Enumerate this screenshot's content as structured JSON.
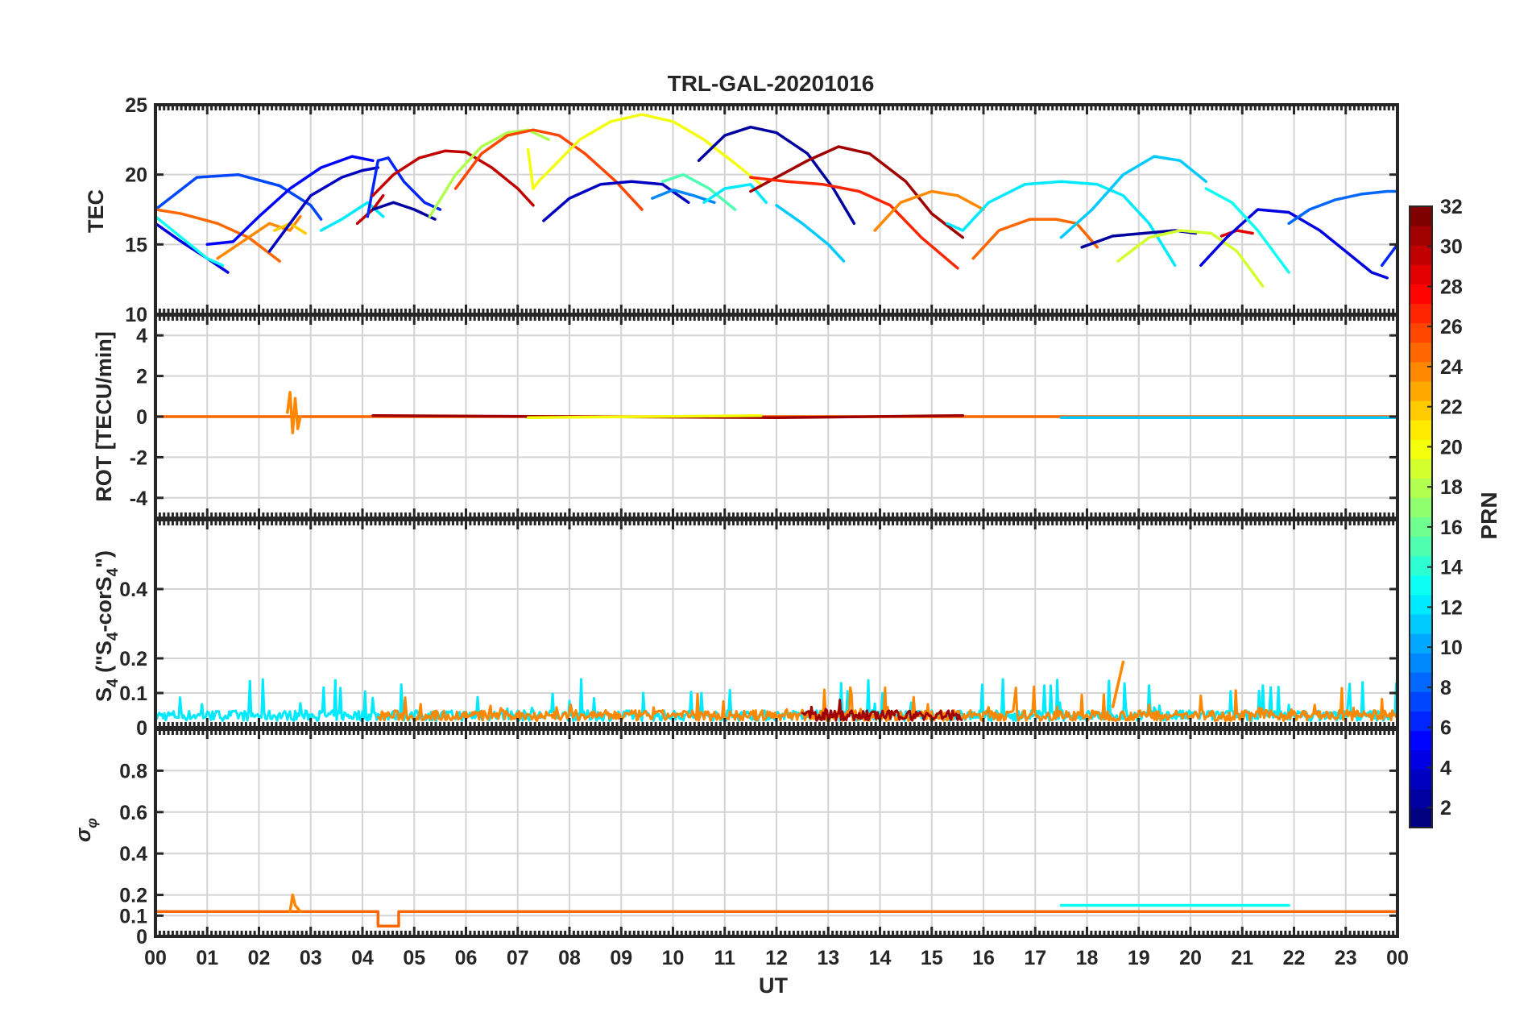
{
  "chart_data": {
    "type": "line",
    "title": "TRL-GAL-20201016",
    "xlabel": "UT",
    "x_ticks": [
      "00",
      "01",
      "02",
      "03",
      "04",
      "05",
      "06",
      "07",
      "08",
      "09",
      "10",
      "11",
      "12",
      "13",
      "14",
      "15",
      "16",
      "17",
      "18",
      "19",
      "20",
      "21",
      "22",
      "23",
      "00"
    ],
    "x_range_hours": [
      0,
      24
    ],
    "colorbar": {
      "label": "PRN",
      "range": [
        1,
        32
      ],
      "ticks": [
        "2",
        "4",
        "6",
        "8",
        "10",
        "12",
        "14",
        "16",
        "18",
        "20",
        "22",
        "24",
        "26",
        "28",
        "30",
        "32"
      ],
      "colormap": "jet"
    },
    "panels": [
      {
        "id": "tec",
        "ylabel": "TEC",
        "ylim": [
          10,
          25
        ],
        "yticks": [
          "10",
          "15",
          "20",
          "25"
        ],
        "series": [
          {
            "prn": 7,
            "x": [
              0.0,
              0.8,
              1.6,
              2.4,
              3.0,
              3.2
            ],
            "y": [
              17.5,
              19.8,
              20.0,
              19.2,
              17.8,
              16.8
            ]
          },
          {
            "prn": 4,
            "x": [
              0.0,
              0.5,
              1.0,
              1.4
            ],
            "y": [
              16.5,
              15.2,
              14.0,
              13.0
            ]
          },
          {
            "prn": 13,
            "x": [
              0.0,
              0.5,
              1.0,
              1.3
            ],
            "y": [
              17.0,
              15.5,
              14.0,
              13.5
            ]
          },
          {
            "prn": 25,
            "x": [
              0.0,
              0.5,
              1.2,
              1.8,
              2.4
            ],
            "y": [
              17.5,
              17.2,
              16.5,
              15.5,
              13.8
            ]
          },
          {
            "prn": 24,
            "x": [
              1.2,
              1.8,
              2.2,
              2.6,
              2.8
            ],
            "y": [
              14.0,
              15.5,
              16.5,
              16.0,
              17.0
            ]
          },
          {
            "prn": 22,
            "x": [
              2.3,
              2.6,
              2.9
            ],
            "y": [
              16.0,
              16.5,
              15.8
            ]
          },
          {
            "prn": 5,
            "x": [
              1.0,
              1.5,
              2.0,
              2.6,
              3.2,
              3.8,
              4.2
            ],
            "y": [
              15.0,
              15.2,
              17.0,
              19.0,
              20.5,
              21.3,
              21.0
            ]
          },
          {
            "prn": 3,
            "x": [
              2.2,
              2.6,
              3.0,
              3.6,
              4.0,
              4.3
            ],
            "y": [
              14.5,
              16.5,
              18.5,
              19.8,
              20.3,
              20.5
            ]
          },
          {
            "prn": 12,
            "x": [
              3.2,
              3.6,
              4.1,
              4.4
            ],
            "y": [
              16.0,
              16.8,
              18.0,
              17.0
            ]
          },
          {
            "prn": 30,
            "x": [
              3.9,
              4.2,
              4.4
            ],
            "y": [
              16.5,
              17.5,
              18.5
            ]
          },
          {
            "prn": 6,
            "x": [
              4.1,
              4.3,
              4.5,
              4.8,
              5.2,
              5.5
            ],
            "y": [
              17.0,
              21.0,
              21.2,
              19.5,
              18.0,
              17.5
            ]
          },
          {
            "prn": 2,
            "x": [
              4.2,
              4.6,
              5.0,
              5.4
            ],
            "y": [
              17.5,
              18.0,
              17.5,
              16.8
            ]
          },
          {
            "prn": 30,
            "x": [
              4.2,
              4.6,
              5.1,
              5.6,
              6.0,
              6.5,
              7.0,
              7.3
            ],
            "y": [
              18.5,
              20.0,
              21.2,
              21.7,
              21.6,
              20.5,
              19.0,
              17.8
            ]
          },
          {
            "prn": 18,
            "x": [
              5.3,
              5.8,
              6.3,
              6.8,
              7.2,
              7.6
            ],
            "y": [
              17.0,
              20.0,
              22.0,
              23.0,
              23.2,
              22.5
            ]
          },
          {
            "prn": 26,
            "x": [
              5.8,
              6.3,
              6.8,
              7.3,
              7.8,
              8.3,
              8.9,
              9.4
            ],
            "y": [
              19.0,
              21.5,
              22.8,
              23.2,
              22.8,
              21.5,
              19.5,
              17.5
            ]
          },
          {
            "prn": 20,
            "x": [
              7.2,
              7.3,
              7.4,
              7.8,
              8.2,
              8.8,
              9.4,
              10.0,
              10.6,
              11.2,
              11.7
            ],
            "y": [
              21.8,
              19.0,
              19.5,
              21.0,
              22.5,
              23.8,
              24.3,
              23.8,
              22.5,
              20.8,
              19.3
            ]
          },
          {
            "prn": 3,
            "x": [
              7.5,
              8.0,
              8.6,
              9.2,
              9.8,
              10.3
            ],
            "y": [
              16.7,
              18.3,
              19.3,
              19.5,
              19.3,
              18.0
            ]
          },
          {
            "prn": 9,
            "x": [
              9.6,
              10.0,
              10.4,
              10.8
            ],
            "y": [
              18.3,
              18.9,
              18.5,
              18.0
            ]
          },
          {
            "prn": 15,
            "x": [
              9.8,
              10.2,
              10.7,
              11.2
            ],
            "y": [
              19.5,
              20.0,
              19.0,
              17.5
            ]
          },
          {
            "prn": 12,
            "x": [
              10.6,
              11.0,
              11.5,
              11.8
            ],
            "y": [
              18.0,
              19.0,
              19.3,
              18.0
            ]
          },
          {
            "prn": 2,
            "x": [
              10.5,
              11.0,
              11.5,
              12.0,
              12.6,
              13.1,
              13.5
            ],
            "y": [
              21.0,
              22.8,
              23.4,
              23.0,
              21.5,
              19.0,
              16.5
            ]
          },
          {
            "prn": 31,
            "x": [
              11.5,
              12.1,
              12.6,
              13.2,
              13.8,
              14.5,
              15.0,
              15.6
            ],
            "y": [
              18.8,
              20.0,
              21.0,
              22.0,
              21.5,
              19.5,
              17.2,
              15.5
            ]
          },
          {
            "prn": 27,
            "x": [
              11.5,
              12.2,
              12.9,
              13.6,
              14.2,
              14.8,
              15.5
            ],
            "y": [
              19.8,
              19.5,
              19.3,
              18.8,
              17.8,
              15.5,
              13.3
            ]
          },
          {
            "prn": 11,
            "x": [
              12.0,
              12.5,
              13.0,
              13.3
            ],
            "y": [
              17.8,
              16.5,
              15.0,
              13.8
            ]
          },
          {
            "prn": 24,
            "x": [
              13.9,
              14.4,
              15.0,
              15.5,
              16.0
            ],
            "y": [
              16.0,
              18.0,
              18.8,
              18.5,
              17.5
            ]
          },
          {
            "prn": 12,
            "x": [
              15.3,
              15.6,
              16.1,
              16.8,
              17.5,
              18.2,
              18.7,
              19.2,
              19.7
            ],
            "y": [
              16.5,
              16.0,
              18.0,
              19.3,
              19.5,
              19.3,
              18.5,
              16.5,
              13.5
            ]
          },
          {
            "prn": 25,
            "x": [
              15.8,
              16.3,
              16.9,
              17.4,
              17.8,
              18.2
            ],
            "y": [
              14.0,
              16.0,
              16.8,
              16.8,
              16.5,
              14.8
            ]
          },
          {
            "prn": 11,
            "x": [
              17.5,
              18.1,
              18.7,
              19.3,
              19.8,
              20.3
            ],
            "y": [
              15.5,
              17.5,
              20.0,
              21.3,
              21.0,
              19.5
            ]
          },
          {
            "prn": 2,
            "x": [
              17.9,
              18.5,
              19.1,
              19.7,
              20.1
            ],
            "y": [
              14.8,
              15.6,
              15.8,
              16.0,
              15.8
            ]
          },
          {
            "prn": 19,
            "x": [
              18.6,
              19.2,
              19.8,
              20.4,
              20.9,
              21.4
            ],
            "y": [
              13.8,
              15.5,
              16.0,
              15.8,
              14.5,
              12.0
            ]
          },
          {
            "prn": 29,
            "x": [
              20.6,
              20.9,
              21.2
            ],
            "y": [
              15.6,
              16.0,
              15.8
            ]
          },
          {
            "prn": 4,
            "x": [
              20.2,
              20.7,
              21.3,
              21.9,
              22.5,
              23.0,
              23.5,
              23.8
            ],
            "y": [
              13.5,
              15.5,
              17.5,
              17.3,
              16.0,
              14.5,
              13.0,
              12.6
            ]
          },
          {
            "prn": 13,
            "x": [
              20.3,
              20.8,
              21.3,
              21.6,
              21.9
            ],
            "y": [
              19.0,
              18.0,
              16.0,
              14.5,
              13.0
            ]
          },
          {
            "prn": 8,
            "x": [
              21.9,
              22.3,
              22.8,
              23.3,
              23.8,
              24.0
            ],
            "y": [
              16.5,
              17.5,
              18.2,
              18.6,
              18.8,
              18.8
            ]
          },
          {
            "prn": 6,
            "x": [
              23.7,
              23.9,
              24.0
            ],
            "y": [
              13.5,
              14.5,
              15.0
            ]
          }
        ]
      },
      {
        "id": "rot",
        "ylabel": "ROT [TECU/min]",
        "ylim": [
          -5,
          5
        ],
        "yticks": [
          "-4",
          "-2",
          "0",
          "2",
          "4"
        ],
        "series": [
          {
            "prn": 25,
            "x": [
              0.0,
              24.0
            ],
            "y": [
              0.0,
              0.0
            ]
          },
          {
            "prn": 24,
            "x": [
              2.55,
              2.6,
              2.65,
              2.7,
              2.75,
              2.8
            ],
            "y": [
              0.2,
              1.2,
              -0.8,
              0.9,
              -0.6,
              0.0
            ]
          },
          {
            "prn": 31,
            "x": [
              4.2,
              8.0,
              12.0,
              15.6
            ],
            "y": [
              0.05,
              0.0,
              -0.05,
              0.05
            ]
          },
          {
            "prn": 20,
            "x": [
              7.2,
              11.7
            ],
            "y": [
              -0.05,
              0.05
            ]
          },
          {
            "prn": 11,
            "x": [
              17.5,
              24.0
            ],
            "y": [
              -0.05,
              -0.05
            ]
          }
        ]
      },
      {
        "id": "s4",
        "ylabel": "S4 (\"S4-corS4\")",
        "ylim": [
          0,
          0.6
        ],
        "yticks": [
          "0",
          "0.1",
          "0.2",
          "0.4"
        ],
        "series": [
          {
            "prn": 12,
            "x": [
              0.0,
              24.0
            ],
            "y": [
              0.04,
              0.04
            ],
            "noise": 0.12
          },
          {
            "prn": 24,
            "x": [
              4.3,
              24.0
            ],
            "y": [
              0.04,
              0.04
            ],
            "noise": 0.1
          },
          {
            "prn": 31,
            "x": [
              12.5,
              15.6
            ],
            "y": [
              0.04,
              0.04
            ],
            "noise": 0.13
          },
          {
            "prn": 24,
            "x": [
              18.5,
              18.7
            ],
            "y": [
              0.06,
              0.19
            ]
          }
        ]
      },
      {
        "id": "sigma_phi",
        "ylabel": "σφ",
        "ylim": [
          0,
          1
        ],
        "yticks": [
          "0",
          "0.1",
          "0.2",
          "0.4",
          "0.6",
          "0.8"
        ],
        "series": [
          {
            "prn": 25,
            "x": [
              0.0,
              4.3,
              4.3,
              4.7,
              4.7,
              24.0
            ],
            "y": [
              0.12,
              0.12,
              0.05,
              0.05,
              0.12,
              0.12
            ]
          },
          {
            "prn": 24,
            "x": [
              2.6,
              2.65,
              2.7,
              2.8
            ],
            "y": [
              0.12,
              0.2,
              0.15,
              0.12
            ]
          },
          {
            "prn": 13,
            "x": [
              17.5,
              21.9
            ],
            "y": [
              0.15,
              0.15
            ]
          }
        ]
      }
    ]
  }
}
